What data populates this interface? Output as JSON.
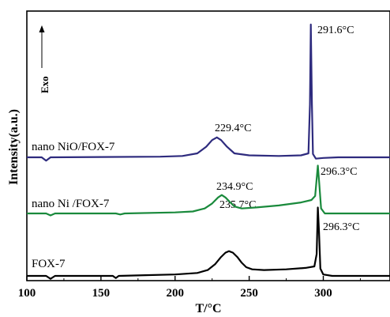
{
  "chart_data": {
    "type": "line",
    "xlabel": "T/°C",
    "ylabel": "Intensity(a.u.)",
    "xlim": [
      100,
      345
    ],
    "x_ticks": [
      "100",
      "150",
      "200",
      "250",
      "300"
    ],
    "y_ticks_labeled": false,
    "exo_indicator": "Exo",
    "series": [
      {
        "name": "FOX-7",
        "color": "#000000",
        "points": [
          [
            100,
            0.0
          ],
          [
            113,
            0.0
          ],
          [
            116,
            -0.4
          ],
          [
            119,
            0.0
          ],
          [
            158,
            0.0
          ],
          [
            160,
            -0.3
          ],
          [
            162,
            0.0
          ],
          [
            180,
            0.1
          ],
          [
            200,
            0.2
          ],
          [
            215,
            0.4
          ],
          [
            222,
            0.8
          ],
          [
            227,
            1.6
          ],
          [
            231,
            2.6
          ],
          [
            234,
            3.2
          ],
          [
            236.3,
            3.4
          ],
          [
            239,
            3.2
          ],
          [
            242,
            2.6
          ],
          [
            245,
            1.8
          ],
          [
            248,
            1.2
          ],
          [
            252,
            0.9
          ],
          [
            260,
            0.8
          ],
          [
            275,
            0.9
          ],
          [
            288,
            1.1
          ],
          [
            294,
            1.3
          ],
          [
            295.5,
            3.0
          ],
          [
            296.3,
            9.4
          ],
          [
            297.1,
            6.0
          ],
          [
            298,
            1.0
          ],
          [
            300,
            0.2
          ],
          [
            306,
            0.0
          ],
          [
            345,
            0.0
          ]
        ],
        "peaks": [
          {
            "x": 235.7,
            "label": "235.7°C"
          },
          {
            "x": 296.3,
            "label": "296.3°C"
          }
        ]
      },
      {
        "name": "nano Ni /FOX-7",
        "color": "#1a8a3c",
        "points": [
          [
            100,
            0.0
          ],
          [
            113,
            0.0
          ],
          [
            116,
            -0.4
          ],
          [
            119,
            0.0
          ],
          [
            160,
            0.0
          ],
          [
            163,
            -0.2
          ],
          [
            166,
            0.0
          ],
          [
            200,
            0.2
          ],
          [
            212,
            0.4
          ],
          [
            220,
            1.0
          ],
          [
            225,
            2.0
          ],
          [
            229,
            3.2
          ],
          [
            231.5,
            3.7
          ],
          [
            234,
            3.2
          ],
          [
            237,
            2.3
          ],
          [
            240,
            1.4
          ],
          [
            245,
            1.0
          ],
          [
            255,
            1.2
          ],
          [
            270,
            1.6
          ],
          [
            285,
            2.2
          ],
          [
            292,
            2.7
          ],
          [
            294.5,
            3.5
          ],
          [
            296.3,
            9.6
          ],
          [
            297.3,
            6.0
          ],
          [
            298.5,
            1.0
          ],
          [
            301,
            0.0
          ],
          [
            345,
            0.0
          ]
        ],
        "peaks": [
          {
            "x": 234.9,
            "label": "234.9°C"
          },
          {
            "x": 296.3,
            "label": "296.3°C"
          }
        ]
      },
      {
        "name": "nano NiO/FOX-7",
        "color": "#2e2b7e",
        "points": [
          [
            100,
            0.0
          ],
          [
            110,
            0.0
          ],
          [
            113,
            -0.5
          ],
          [
            116,
            0.0
          ],
          [
            190,
            0.1
          ],
          [
            205,
            0.2
          ],
          [
            215,
            0.6
          ],
          [
            221,
            1.6
          ],
          [
            225,
            2.6
          ],
          [
            228.2,
            3.0
          ],
          [
            231,
            2.6
          ],
          [
            235,
            1.6
          ],
          [
            240,
            0.6
          ],
          [
            250,
            0.3
          ],
          [
            270,
            0.2
          ],
          [
            285,
            0.3
          ],
          [
            290,
            0.6
          ],
          [
            291,
            8.0
          ],
          [
            291.6,
            20.0
          ],
          [
            292.3,
            8.0
          ],
          [
            293,
            0.5
          ],
          [
            295,
            -0.2
          ],
          [
            300,
            -0.1
          ],
          [
            310,
            0.0
          ],
          [
            345,
            0.0
          ]
        ],
        "peaks": [
          {
            "x": 229.4,
            "label": "229.4°C"
          },
          {
            "x": 291.6,
            "label": "291.6°C"
          }
        ]
      }
    ]
  }
}
